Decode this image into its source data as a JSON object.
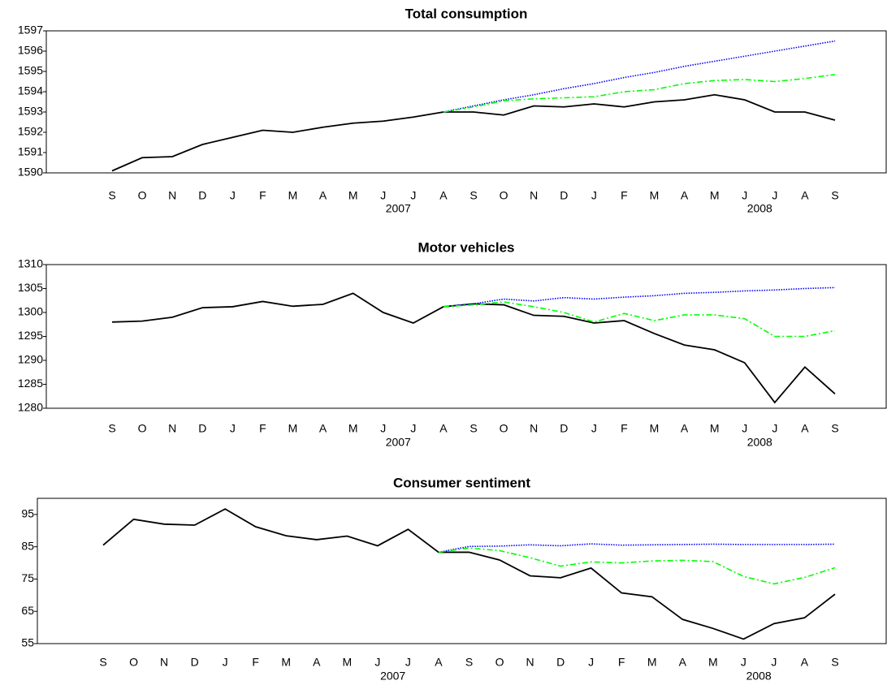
{
  "chart_data": [
    {
      "type": "line",
      "title": "Total consumption",
      "categories": [
        "S",
        "O",
        "N",
        "D",
        "J",
        "F",
        "M",
        "A",
        "M",
        "J",
        "J",
        "A",
        "S",
        "O",
        "N",
        "D",
        "J",
        "F",
        "M",
        "A",
        "M",
        "J",
        "J",
        "A",
        "S"
      ],
      "years": [
        "2007",
        "2008"
      ],
      "ylim": [
        1590,
        1597
      ],
      "yticks": [
        1590,
        1591,
        1592,
        1593,
        1594,
        1595,
        1596,
        1597
      ],
      "series": [
        {
          "color": "#000000",
          "style": "solid",
          "values": [
            1590.1,
            1590.75,
            1590.8,
            1591.4,
            1591.75,
            1592.1,
            1592.0,
            1592.25,
            1592.45,
            1592.55,
            1592.75,
            1593.0,
            1593.0,
            1592.85,
            1593.3,
            1593.25,
            1593.4,
            1593.25,
            1593.5,
            1593.6,
            1593.85,
            1593.6,
            1593.0,
            1593.0,
            1592.6
          ]
        },
        {
          "color": "#0000ff",
          "style": "dotted",
          "values": [
            null,
            null,
            null,
            null,
            null,
            null,
            null,
            null,
            null,
            null,
            null,
            1593.0,
            1593.3,
            1593.6,
            1593.85,
            1594.15,
            1594.4,
            1594.7,
            1594.95,
            1595.25,
            1595.5,
            1595.75,
            1596.0,
            1596.25,
            1596.5
          ]
        },
        {
          "color": "#00ff00",
          "style": "dashdot",
          "values": [
            null,
            null,
            null,
            null,
            null,
            null,
            null,
            null,
            null,
            null,
            null,
            1593.0,
            1593.25,
            1593.55,
            1593.65,
            1593.7,
            1593.75,
            1594.0,
            1594.1,
            1594.4,
            1594.55,
            1594.6,
            1594.5,
            1594.65,
            1594.85
          ]
        }
      ]
    },
    {
      "type": "line",
      "title": "Motor vehicles",
      "categories": [
        "S",
        "O",
        "N",
        "D",
        "J",
        "F",
        "M",
        "A",
        "M",
        "J",
        "J",
        "A",
        "S",
        "O",
        "N",
        "D",
        "J",
        "F",
        "M",
        "A",
        "M",
        "J",
        "J",
        "A",
        "S"
      ],
      "years": [
        "2007",
        "2008"
      ],
      "ylim": [
        1280,
        1310
      ],
      "yticks": [
        1280,
        1285,
        1290,
        1295,
        1300,
        1305,
        1310
      ],
      "series": [
        {
          "color": "#000000",
          "style": "solid",
          "values": [
            1298,
            1298.2,
            1299,
            1301,
            1301.2,
            1302.3,
            1301.3,
            1301.7,
            1304,
            1300,
            1297.8,
            1301.2,
            1301.8,
            1301.6,
            1299.4,
            1299.2,
            1297.8,
            1298.3,
            1295.6,
            1293.2,
            1292.2,
            1289.5,
            1281.2,
            1288.6,
            1283
          ]
        },
        {
          "color": "#0000ff",
          "style": "dotted",
          "values": [
            null,
            null,
            null,
            null,
            null,
            null,
            null,
            null,
            null,
            null,
            null,
            1301.2,
            1301.8,
            1302.8,
            1302.4,
            1303.1,
            1302.8,
            1303.2,
            1303.5,
            1304,
            1304.2,
            1304.5,
            1304.7,
            1305,
            1305.2
          ]
        },
        {
          "color": "#00ff00",
          "style": "dashdot",
          "values": [
            null,
            null,
            null,
            null,
            null,
            null,
            null,
            null,
            null,
            null,
            null,
            1301.2,
            1301.6,
            1302.2,
            1301.2,
            1300,
            1298,
            1299.8,
            1298.3,
            1299.5,
            1299.5,
            1298.7,
            1295,
            1295,
            1296.2
          ]
        }
      ]
    },
    {
      "type": "line",
      "title": "Consumer sentiment",
      "categories": [
        "S",
        "O",
        "N",
        "D",
        "J",
        "F",
        "M",
        "A",
        "M",
        "J",
        "J",
        "A",
        "S",
        "O",
        "N",
        "D",
        "J",
        "F",
        "M",
        "A",
        "M",
        "J",
        "J",
        "A",
        "S"
      ],
      "years": [
        "2007",
        "2008"
      ],
      "ylim": [
        55,
        100
      ],
      "yticks": [
        55,
        65,
        75,
        85,
        95
      ],
      "series": [
        {
          "color": "#000000",
          "style": "solid",
          "values": [
            85.5,
            93.5,
            92,
            91.7,
            96.7,
            91.2,
            88.4,
            87.2,
            88.3,
            85.3,
            90.4,
            83.3,
            83.3,
            80.9,
            76,
            75.4,
            78.4,
            70.7,
            69.5,
            62.5,
            59.7,
            56.4,
            61.2,
            63,
            70.3
          ]
        },
        {
          "color": "#0000ff",
          "style": "dotted",
          "values": [
            null,
            null,
            null,
            null,
            null,
            null,
            null,
            null,
            null,
            null,
            null,
            83.3,
            85.1,
            85.2,
            85.6,
            85.3,
            85.9,
            85.5,
            85.6,
            85.7,
            85.8,
            85.7,
            85.7,
            85.7,
            85.8
          ]
        },
        {
          "color": "#00ff00",
          "style": "dashdot",
          "values": [
            null,
            null,
            null,
            null,
            null,
            null,
            null,
            null,
            null,
            null,
            null,
            83.3,
            84.6,
            83.8,
            81.6,
            79,
            80.3,
            80,
            80.6,
            80.8,
            80.4,
            75.8,
            73.5,
            75.5,
            78.5
          ]
        }
      ]
    }
  ]
}
